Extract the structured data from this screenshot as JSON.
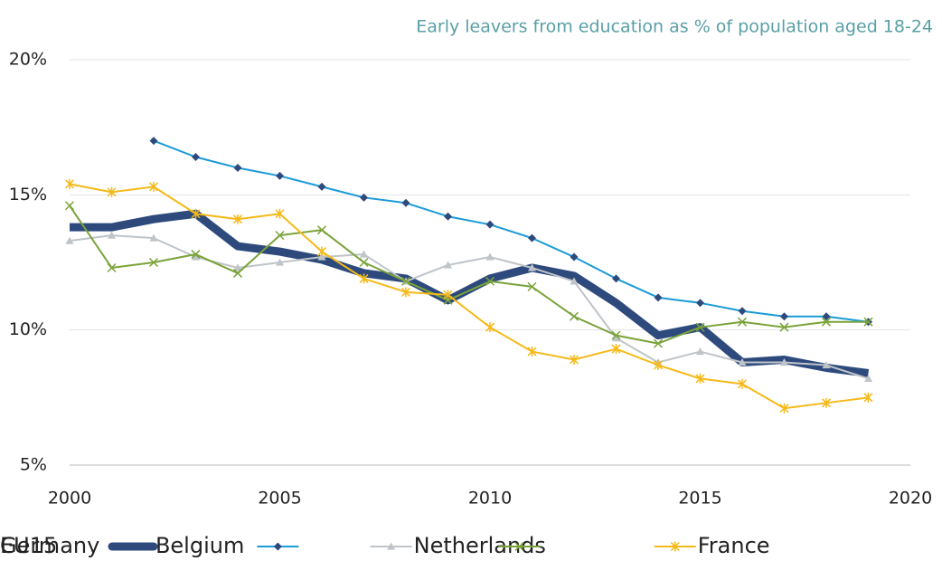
{
  "chart_data": {
    "type": "line",
    "title": "Early leavers from education as % of population aged 18-24",
    "x": [
      2000,
      2001,
      2002,
      2003,
      2004,
      2005,
      2006,
      2007,
      2008,
      2009,
      2010,
      2011,
      2012,
      2013,
      2014,
      2015,
      2016,
      2017,
      2018,
      2019
    ],
    "xlim": [
      2000,
      2020
    ],
    "xticks": [
      2000,
      2005,
      2010,
      2015,
      2020
    ],
    "ylim": [
      5,
      20
    ],
    "yticks": [
      {
        "value": 5,
        "label": "5%"
      },
      {
        "value": 10,
        "label": "10%"
      },
      {
        "value": 15,
        "label": "15%"
      },
      {
        "value": 20,
        "label": "20%"
      }
    ],
    "grid": true,
    "legend": "bottom",
    "series": [
      {
        "name": "Belgium",
        "color": "#2e4a7d",
        "line_width": 9,
        "marker": "none",
        "values": [
          13.8,
          13.8,
          14.1,
          14.3,
          13.1,
          12.9,
          12.6,
          12.1,
          11.9,
          11.1,
          11.9,
          12.3,
          12.0,
          11.0,
          9.8,
          10.1,
          8.8,
          8.9,
          8.6,
          8.4
        ]
      },
      {
        "name": "EU15",
        "color": "#1b9bd7",
        "marker_color": "#2e4a7d",
        "line_width": 2,
        "marker": "diamond",
        "values": [
          null,
          null,
          17.0,
          16.4,
          16.0,
          15.7,
          15.3,
          14.9,
          14.7,
          14.2,
          13.9,
          13.4,
          12.7,
          11.9,
          11.2,
          11.0,
          10.7,
          10.5,
          10.5,
          10.3
        ]
      },
      {
        "name": "France",
        "color": "#bfc4c9",
        "marker_color": "#bfc4c9",
        "line_width": 2,
        "marker": "triangle",
        "values": [
          13.3,
          13.5,
          13.4,
          12.7,
          12.3,
          12.5,
          12.7,
          12.8,
          11.8,
          12.4,
          12.7,
          12.3,
          11.8,
          9.7,
          8.8,
          9.2,
          8.8,
          8.8,
          8.7,
          8.2
        ]
      },
      {
        "name": "Germany",
        "color": "#7aa33a",
        "marker_color": "#7aa33a",
        "line_width": 2,
        "marker": "x",
        "values": [
          14.6,
          12.3,
          12.5,
          12.8,
          12.1,
          13.5,
          13.7,
          12.5,
          11.8,
          11.1,
          11.8,
          11.6,
          10.5,
          9.8,
          9.5,
          10.1,
          10.3,
          10.1,
          10.3,
          10.3
        ]
      },
      {
        "name": "Netherlands",
        "color": "#f5b919",
        "marker_color": "#f5b919",
        "line_width": 2,
        "marker": "star",
        "values": [
          15.4,
          15.1,
          15.3,
          14.3,
          14.1,
          14.3,
          12.9,
          11.9,
          11.4,
          11.3,
          10.1,
          9.2,
          8.9,
          9.3,
          8.7,
          8.2,
          8.0,
          7.1,
          7.3,
          7.5
        ]
      }
    ]
  }
}
